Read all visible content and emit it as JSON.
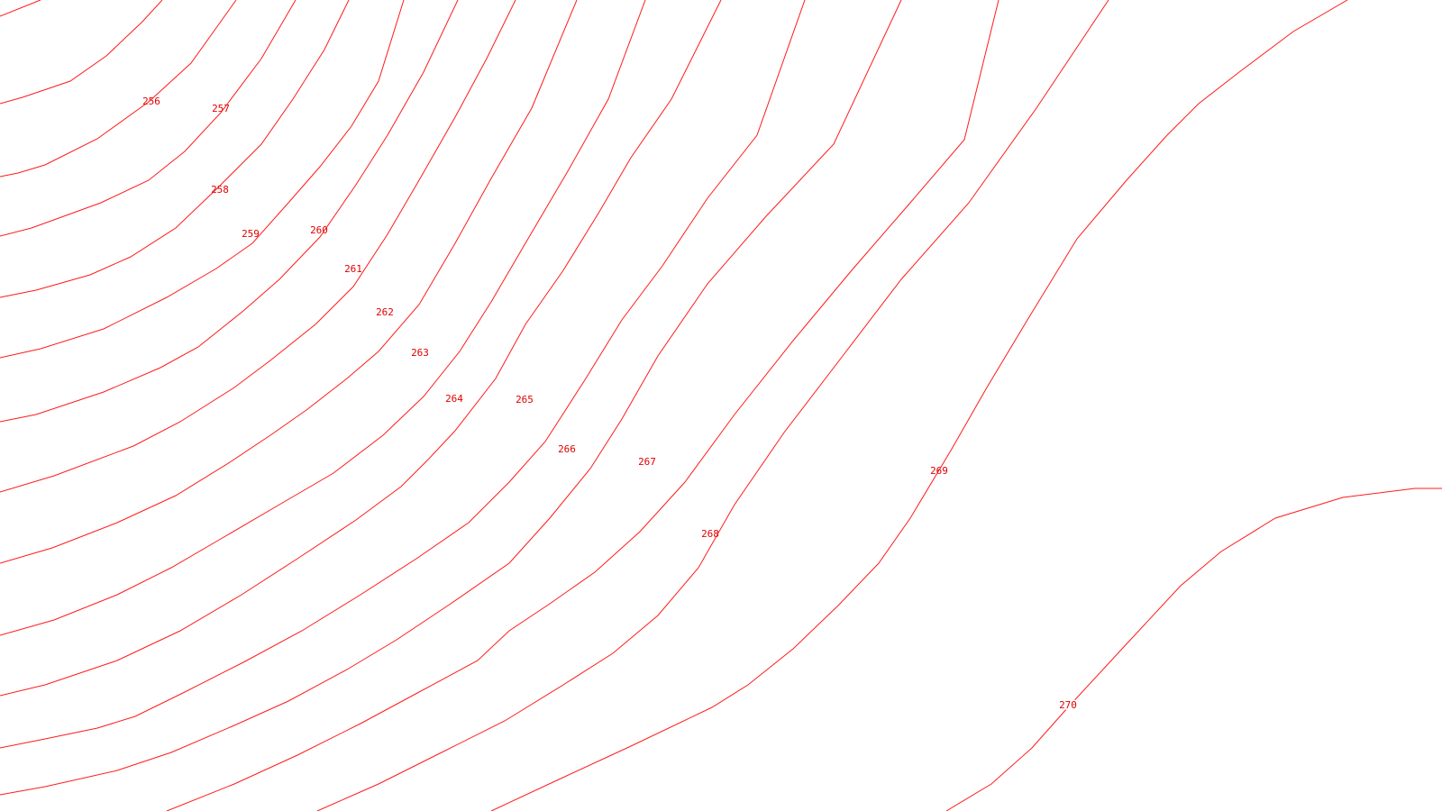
{
  "map": {
    "line_color": "#ff1a1a",
    "label_color": "#e00000",
    "background": "#ffffff",
    "contours": [
      {
        "elevation": "256"
      },
      {
        "elevation": "257"
      },
      {
        "elevation": "258"
      },
      {
        "elevation": "259"
      },
      {
        "elevation": "260"
      },
      {
        "elevation": "261"
      },
      {
        "elevation": "262"
      },
      {
        "elevation": "263"
      },
      {
        "elevation": "264"
      },
      {
        "elevation": "265"
      },
      {
        "elevation": "266"
      },
      {
        "elevation": "267"
      },
      {
        "elevation": "268"
      },
      {
        "elevation": "269"
      },
      {
        "elevation": "270"
      }
    ]
  }
}
